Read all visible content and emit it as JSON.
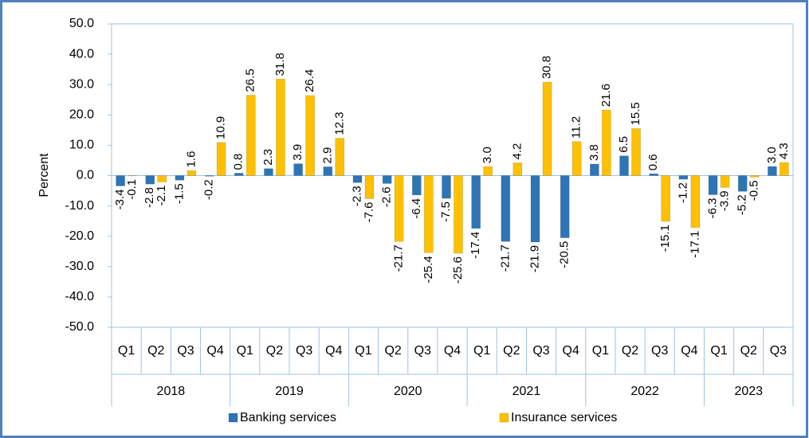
{
  "chart_data": {
    "type": "bar",
    "y_label": "Percent",
    "categories": [
      "Q1",
      "Q2",
      "Q3",
      "Q4",
      "Q1",
      "Q2",
      "Q3",
      "Q4",
      "Q1",
      "Q2",
      "Q3",
      "Q4",
      "Q1",
      "Q2",
      "Q3",
      "Q4",
      "Q1",
      "Q2",
      "Q3",
      "Q4",
      "Q1",
      "Q2",
      "Q3"
    ],
    "category_groups": [
      {
        "label": "2018",
        "span": 4
      },
      {
        "label": "2019",
        "span": 4
      },
      {
        "label": "2020",
        "span": 4
      },
      {
        "label": "2021",
        "span": 4
      },
      {
        "label": "2022",
        "span": 4
      },
      {
        "label": "2023",
        "span": 3
      }
    ],
    "series": [
      {
        "name": "Banking services",
        "color": "#2e75b6",
        "values": [
          -3.4,
          -2.8,
          -1.5,
          -0.2,
          0.8,
          2.3,
          3.9,
          2.9,
          -2.3,
          -2.6,
          -6.4,
          -7.5,
          -17.4,
          -21.7,
          -21.9,
          -20.5,
          3.8,
          6.5,
          0.6,
          -1.2,
          -6.3,
          -5.2,
          3.0
        ],
        "value_labels": [
          "-3.4",
          "-2.8",
          "-1.5",
          "-0.2",
          "0.8",
          "2.3",
          "3.9",
          "2.9",
          "-2.3",
          "-2.6",
          "-6.4",
          "-7.5",
          "-17.4",
          "-21.7",
          "-21.9",
          "-20.5",
          "3.8",
          "6.5",
          "0.6",
          "-1.2",
          "-6.3",
          "-5.2",
          "3.0"
        ]
      },
      {
        "name": "Insurance services",
        "color": "#ffc000",
        "values": [
          -0.1,
          -2.1,
          1.6,
          10.9,
          26.5,
          31.8,
          26.4,
          12.3,
          -7.6,
          -21.7,
          -25.4,
          -25.6,
          3.0,
          4.2,
          30.8,
          11.2,
          21.6,
          15.5,
          -15.1,
          -17.1,
          -3.9,
          -0.5,
          4.3
        ],
        "value_labels": [
          "-0.1",
          "-2.1",
          "1.6",
          "10.9",
          "26.5",
          "31.8",
          "26.4",
          "12.3",
          "-7.6",
          "-21.7",
          "-25.4",
          "-25.6",
          "3.0",
          "4.2",
          "30.8",
          "11.2",
          "21.6",
          "15.5",
          "-15.1",
          "-17.1",
          "-3.9",
          "-0.5",
          "4.3"
        ]
      }
    ],
    "ylim": [
      -50,
      50
    ],
    "yticks": [
      {
        "value": -50,
        "label": "-50.0"
      },
      {
        "value": -40,
        "label": "-40.0"
      },
      {
        "value": -30,
        "label": "-30.0"
      },
      {
        "value": -20,
        "label": "-20.0"
      },
      {
        "value": -10,
        "label": "-10.0"
      },
      {
        "value": 0,
        "label": "0.0"
      },
      {
        "value": 10,
        "label": "10.0"
      },
      {
        "value": 20,
        "label": "20.0"
      },
      {
        "value": 30,
        "label": "30.0"
      },
      {
        "value": 40,
        "label": "40.0"
      },
      {
        "value": 50,
        "label": "50.0"
      }
    ],
    "grid": false,
    "legend": "bottom"
  }
}
